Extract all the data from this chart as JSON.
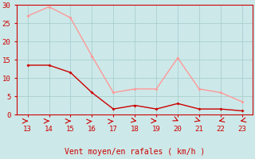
{
  "x": [
    13,
    14,
    15,
    16,
    17,
    18,
    19,
    20,
    21,
    22,
    23
  ],
  "wind_avg": [
    13.5,
    13.5,
    11.5,
    6.0,
    1.5,
    2.5,
    1.5,
    3.0,
    1.5,
    1.5,
    1.0
  ],
  "wind_gust": [
    27.0,
    29.5,
    26.5,
    16.0,
    6.0,
    7.0,
    7.0,
    15.5,
    7.0,
    6.0,
    3.5
  ],
  "avg_color": "#cc0000",
  "gust_color": "#ff9999",
  "bg_color": "#cce8e8",
  "grid_color": "#aacece",
  "xlabel": "Vent moyen/en rafales ( km/h )",
  "xlabel_color": "#cc0000",
  "axis_color": "#cc0000",
  "tick_color": "#cc0000",
  "ylim": [
    0,
    30
  ],
  "xlim": [
    12.5,
    23.5
  ],
  "yticks": [
    0,
    5,
    10,
    15,
    20,
    25,
    30
  ],
  "xticks": [
    13,
    14,
    15,
    16,
    17,
    18,
    19,
    20,
    21,
    22,
    23
  ],
  "arrow_angles": [
    0,
    0,
    0,
    20,
    20,
    315,
    350,
    290,
    300,
    230,
    230
  ]
}
